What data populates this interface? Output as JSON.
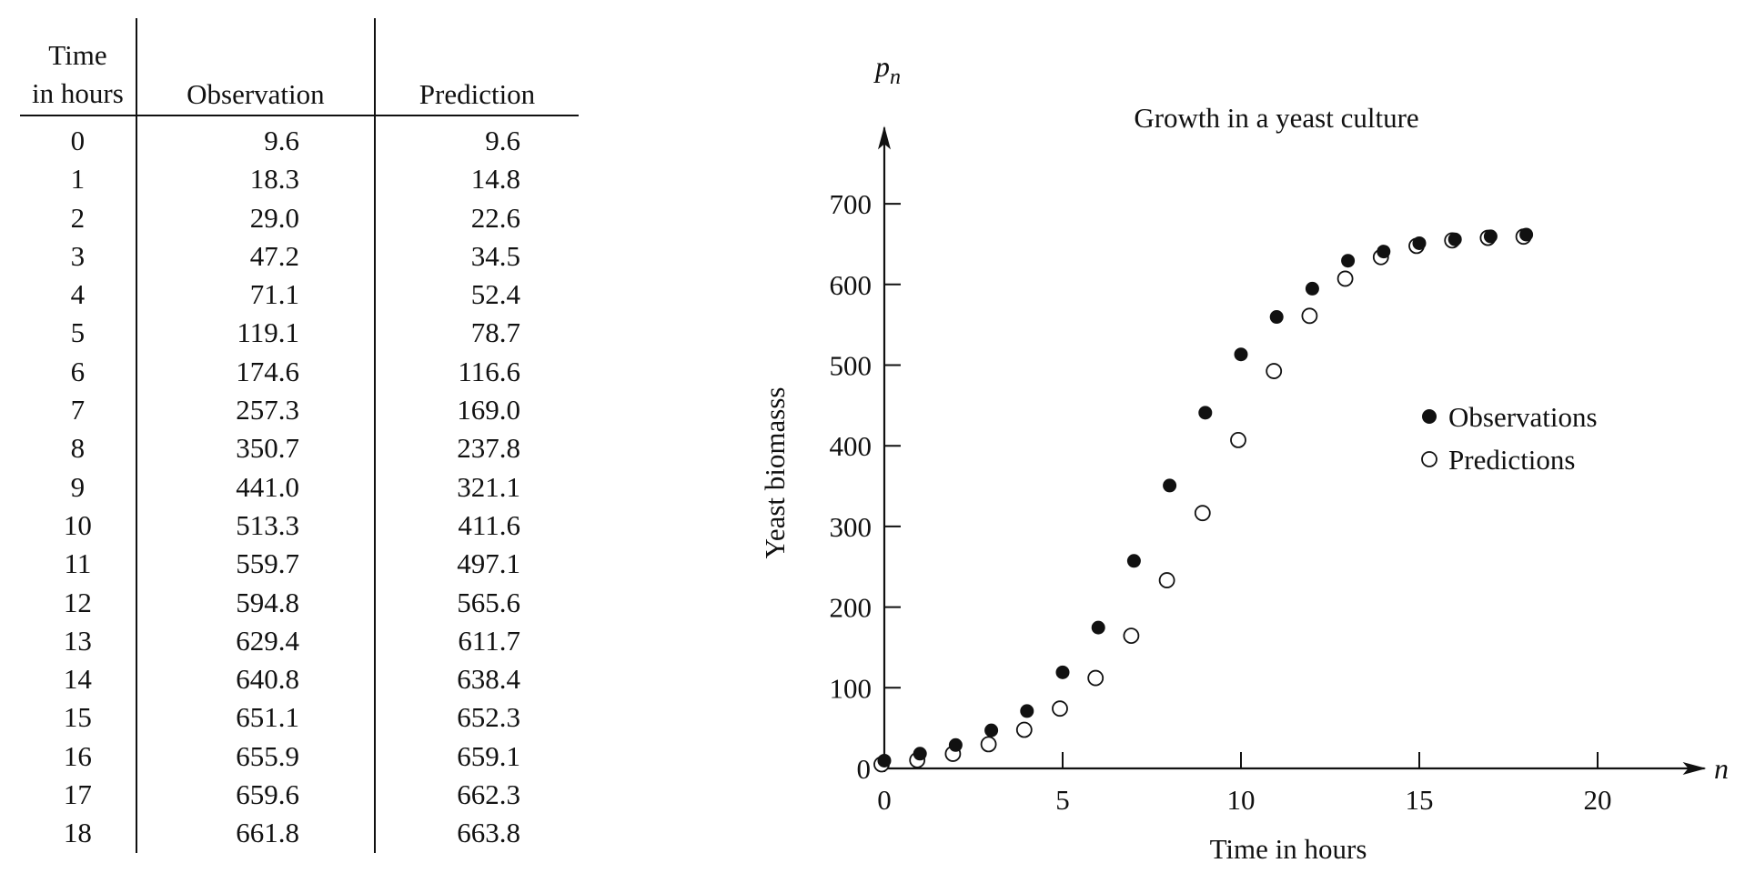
{
  "table": {
    "headers": {
      "time_line1": "Time",
      "time_line2": "in hours",
      "observation": "Observation",
      "prediction": "Prediction"
    },
    "rows": [
      {
        "time": "0",
        "observation": "9.6",
        "prediction": "9.6"
      },
      {
        "time": "1",
        "observation": "18.3",
        "prediction": "14.8"
      },
      {
        "time": "2",
        "observation": "29.0",
        "prediction": "22.6"
      },
      {
        "time": "3",
        "observation": "47.2",
        "prediction": "34.5"
      },
      {
        "time": "4",
        "observation": "71.1",
        "prediction": "52.4"
      },
      {
        "time": "5",
        "observation": "119.1",
        "prediction": "78.7"
      },
      {
        "time": "6",
        "observation": "174.6",
        "prediction": "116.6"
      },
      {
        "time": "7",
        "observation": "257.3",
        "prediction": "169.0"
      },
      {
        "time": "8",
        "observation": "350.7",
        "prediction": "237.8"
      },
      {
        "time": "9",
        "observation": "441.0",
        "prediction": "321.1"
      },
      {
        "time": "10",
        "observation": "513.3",
        "prediction": "411.6"
      },
      {
        "time": "11",
        "observation": "559.7",
        "prediction": "497.1"
      },
      {
        "time": "12",
        "observation": "594.8",
        "prediction": "565.6"
      },
      {
        "time": "13",
        "observation": "629.4",
        "prediction": "611.7"
      },
      {
        "time": "14",
        "observation": "640.8",
        "prediction": "638.4"
      },
      {
        "time": "15",
        "observation": "651.1",
        "prediction": "652.3"
      },
      {
        "time": "16",
        "observation": "655.9",
        "prediction": "659.1"
      },
      {
        "time": "17",
        "observation": "659.6",
        "prediction": "662.3"
      },
      {
        "time": "18",
        "observation": "661.8",
        "prediction": "663.8"
      }
    ]
  },
  "chart_data": {
    "type": "scatter",
    "title": "Growth in a yeast culture",
    "xlabel": "Time in hours",
    "ylabel": "Yeast biomasss",
    "x_axis_symbol": "n",
    "y_axis_symbol": "p",
    "y_axis_symbol_subscript": "n",
    "xlim": [
      0,
      23
    ],
    "ylim": [
      0,
      800
    ],
    "x_ticks": [
      0,
      5,
      10,
      15,
      20
    ],
    "y_ticks": [
      0,
      100,
      200,
      300,
      400,
      500,
      600,
      700
    ],
    "grid": false,
    "legend_position": "right",
    "x": [
      0,
      1,
      2,
      3,
      4,
      5,
      6,
      7,
      8,
      9,
      10,
      11,
      12,
      13,
      14,
      15,
      16,
      17,
      18
    ],
    "series": [
      {
        "name": "Observations",
        "marker": "filled-circle",
        "values": [
          9.6,
          18.3,
          29.0,
          47.2,
          71.1,
          119.1,
          174.6,
          257.3,
          350.7,
          441.0,
          513.3,
          559.7,
          594.8,
          629.4,
          640.8,
          651.1,
          655.9,
          659.6,
          661.8
        ]
      },
      {
        "name": "Predictions",
        "marker": "open-circle",
        "values": [
          9.6,
          14.8,
          22.6,
          34.5,
          52.4,
          78.7,
          116.6,
          169.0,
          237.8,
          321.1,
          411.6,
          497.1,
          565.6,
          611.7,
          638.4,
          652.3,
          659.1,
          662.3,
          663.8
        ]
      }
    ]
  }
}
